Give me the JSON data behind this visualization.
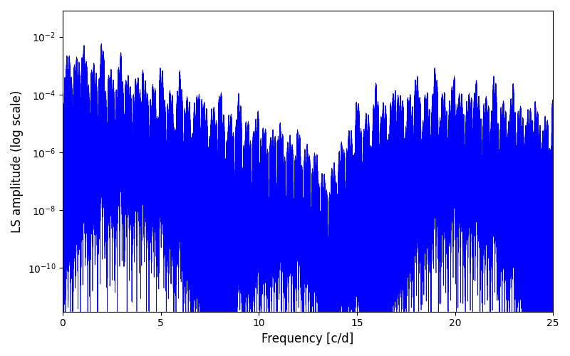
{
  "xlabel": "Frequency [c/d]",
  "ylabel": "LS amplitude (log scale)",
  "xlim": [
    0,
    25
  ],
  "ylim": [
    3e-12,
    0.08
  ],
  "color": "#0000ff",
  "linewidth": 0.5,
  "figsize": [
    8.0,
    5.0
  ],
  "dpi": 100,
  "seed": 1234,
  "n_points": 25000,
  "freq_max": 25.0,
  "yticks": [
    1e-10,
    1e-08,
    1e-06,
    0.0001,
    0.01
  ]
}
